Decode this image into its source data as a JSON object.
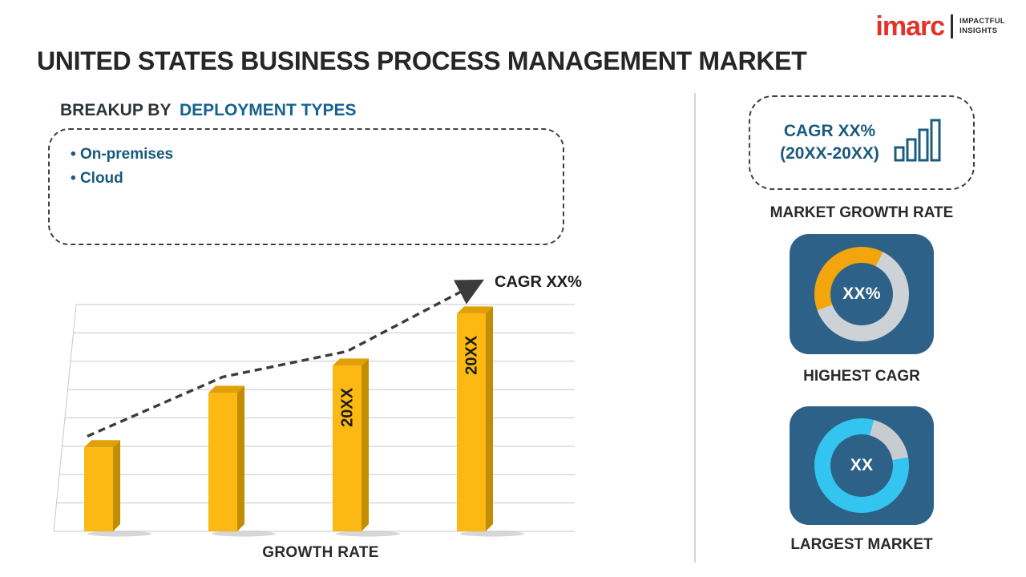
{
  "logo": {
    "brand": "imarc",
    "tagline": [
      "IMPACTFUL",
      "INSIGHTS"
    ]
  },
  "title": "UNITED STATES BUSINESS PROCESS MANAGEMENT MARKET",
  "breakup": {
    "heading_prefix": "BREAKUP BY",
    "heading_accent": "DEPLOYMENT TYPES",
    "items": [
      "On-premises",
      "Cloud"
    ]
  },
  "chart_data": [
    {
      "type": "bar",
      "categories": [
        "",
        "",
        "20XX",
        "20XX"
      ],
      "values": [
        37,
        61,
        73,
        96
      ],
      "ylim": [
        0,
        100
      ],
      "grid": true,
      "xlabel": "GROWTH RATE",
      "trend_label": "CAGR XX%",
      "bar_color": "#fcb813",
      "bar_top_color": "#e2a008",
      "bar_side_color": "#c38d00",
      "trend_color": "#3b3b3b"
    },
    {
      "type": "pie",
      "style": "donut",
      "center_label": "XX%",
      "caption": "HIGHEST CAGR",
      "start_deg": 250,
      "segments": [
        {
          "name": "highlight",
          "color": "#f2a50c",
          "fraction": 0.38
        },
        {
          "name": "remainder",
          "color": "#cdd2d6",
          "fraction": 0.62
        }
      ]
    },
    {
      "type": "pie",
      "style": "donut",
      "center_label": "XX",
      "caption": "LARGEST MARKET",
      "start_deg": 15,
      "segments": [
        {
          "name": "remainder",
          "color": "#c7ccd1",
          "fraction": 0.18
        },
        {
          "name": "highlight",
          "color": "#33c5ef",
          "fraction": 0.82
        }
      ]
    }
  ],
  "sidebar": {
    "cagr_box": {
      "line1": "CAGR XX%",
      "line2": "(20XX-20XX)"
    },
    "market_growth_label": "MARKET GROWTH RATE"
  },
  "colors": {
    "accent_blue": "#15628e",
    "steel_tile": "#2d6187",
    "logo_red": "#e3312b",
    "icon_navy": "#1d5c80"
  }
}
